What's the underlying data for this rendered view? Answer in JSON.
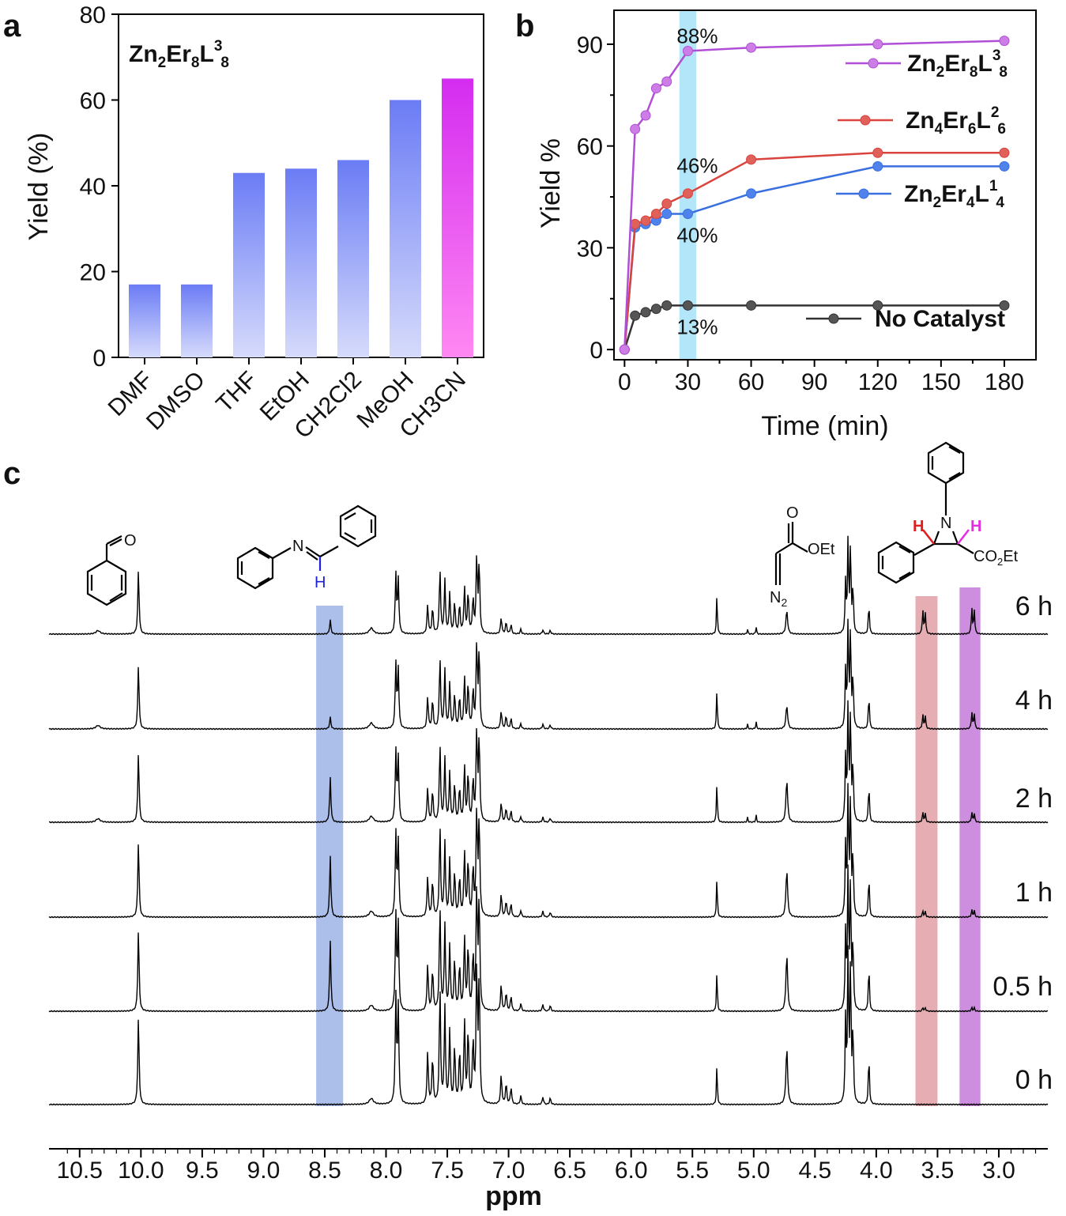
{
  "panel_labels": [
    "a",
    "b",
    "c"
  ],
  "chart_data": [
    {
      "panel": "a",
      "type": "bar",
      "title": "Zn2Er8L38",
      "title_parts": {
        "base": "Zn",
        "s1": "2",
        "b2": "Er",
        "s2": "8",
        "b3": "L",
        "sup": "3",
        "s3": "8"
      },
      "ylabel": "Yield (%)",
      "xlabel": "",
      "ylim": [
        0,
        80
      ],
      "yticks": [
        0,
        20,
        40,
        60,
        80
      ],
      "categories": [
        "DMF",
        "DMSO",
        "THF",
        "EtOH",
        "CH2Cl2",
        "MeOH",
        "CH3CN"
      ],
      "values": [
        17,
        17,
        43,
        44,
        46,
        60,
        65
      ],
      "colors": {
        "bar_top": "#6b7cf5",
        "bar_bottom": "#d6dbfb",
        "highlight_top": "#d42cf0",
        "highlight_bottom": "#ff88f2"
      }
    },
    {
      "panel": "b",
      "type": "line",
      "xlabel": "Time (min)",
      "ylabel": "Yield %",
      "xlim": [
        -5,
        195
      ],
      "ylim": [
        -3,
        100
      ],
      "xticks": [
        0,
        30,
        60,
        90,
        120,
        150,
        180
      ],
      "yticks": [
        0,
        30,
        60,
        90
      ],
      "highlight_x": [
        26,
        34
      ],
      "series": [
        {
          "name": "Zn2Er8L38",
          "parts": [
            "Zn",
            "2",
            "Er",
            "8",
            "L",
            "3",
            "8"
          ],
          "color": "#b04fd6",
          "fill": "#cc7ee6",
          "x": [
            0,
            5,
            10,
            15,
            20,
            30,
            60,
            120,
            180
          ],
          "y": [
            0,
            65,
            69,
            77,
            79,
            88,
            89,
            90,
            91
          ]
        },
        {
          "name": "Zn4Er6L26",
          "parts": [
            "Zn",
            "4",
            "Er",
            "6",
            "L",
            "2",
            "6"
          ],
          "color": "#d9443f",
          "fill": "#e0605a",
          "x": [
            0,
            5,
            10,
            15,
            20,
            30,
            60,
            120,
            180
          ],
          "y": [
            0,
            37,
            38,
            40,
            43,
            46,
            56,
            58,
            58
          ]
        },
        {
          "name": "Zn2Er4L14",
          "parts": [
            "Zn",
            "2",
            "Er",
            "4",
            "L",
            "1",
            "4"
          ],
          "color": "#3a6fe0",
          "fill": "#4f82ea",
          "x": [
            0,
            5,
            10,
            15,
            20,
            30,
            60,
            120,
            180
          ],
          "y": [
            0,
            36,
            37,
            38,
            40,
            40,
            46,
            54,
            54
          ]
        },
        {
          "name": "No Catalyst",
          "color": "#333333",
          "fill": "#555555",
          "x": [
            0,
            5,
            10,
            15,
            20,
            30,
            60,
            120,
            180
          ],
          "y": [
            0,
            10,
            11,
            12,
            13,
            13,
            13,
            13,
            13
          ]
        }
      ],
      "annotations": [
        {
          "text": "88%",
          "x": 30,
          "y": 88
        },
        {
          "text": "46%",
          "x": 30,
          "y": 46
        },
        {
          "text": "40%",
          "x": 30,
          "y": 40
        },
        {
          "text": "13%",
          "x": 30,
          "y": 13
        }
      ]
    },
    {
      "panel": "c",
      "type": "line",
      "xlabel": "ppm",
      "xlim": [
        10.75,
        2.6
      ],
      "xticks": [
        10.5,
        10.0,
        9.5,
        9.0,
        8.5,
        8.0,
        7.5,
        7.0,
        6.5,
        6.0,
        5.5,
        5.0,
        4.5,
        4.0,
        3.5,
        3.0
      ],
      "xtick_labels": [
        "10.5",
        "10.0",
        "9.5",
        "9.0",
        "8.5",
        "8.0",
        "7.5",
        "7.0",
        "6.5",
        "6.0",
        "5.5",
        "5.0",
        "4.5",
        "4.0",
        "3.5",
        "3.0"
      ],
      "highlight_bands": [
        {
          "from": 8.57,
          "to": 8.35,
          "color": "#9db3e6"
        },
        {
          "from": 3.68,
          "to": 3.5,
          "color": "#e2a0a6"
        },
        {
          "from": 3.32,
          "to": 3.15,
          "color": "#c67ad9"
        }
      ],
      "series": [
        {
          "name": "6 h",
          "aldehyde": 0.55,
          "imine": 0.12,
          "aromatic": 0.5,
          "diazo": 0.2,
          "ester": 0.8,
          "prod1": 0.2,
          "prod2": 0.22
        },
        {
          "name": "4 h",
          "aldehyde": 0.55,
          "imine": 0.1,
          "aromatic": 0.55,
          "diazo": 0.2,
          "ester": 0.9,
          "prod1": 0.12,
          "prod2": 0.14
        },
        {
          "name": "2 h",
          "aldehyde": 0.6,
          "imine": 0.38,
          "aromatic": 0.6,
          "diazo": 0.36,
          "ester": 1.0,
          "prod1": 0.08,
          "prod2": 0.08
        },
        {
          "name": "1 h",
          "aldehyde": 0.65,
          "imine": 0.52,
          "aromatic": 0.7,
          "diazo": 0.4,
          "ester": 1.1,
          "prod1": 0.05,
          "prod2": 0.06
        },
        {
          "name": "0.5 h",
          "aldehyde": 0.7,
          "imine": 0.6,
          "aromatic": 0.8,
          "diazo": 0.48,
          "ester": 1.2,
          "prod1": 0.03,
          "prod2": 0.03
        },
        {
          "name": "0 h",
          "aldehyde": 0.75,
          "imine": 0.0,
          "aromatic": 0.9,
          "diazo": 0.48,
          "ester": 1.3,
          "prod1": 0.0,
          "prod2": 0.0
        }
      ]
    }
  ],
  "structures": {
    "aldehyde_atom": "O",
    "imine_atom": "N",
    "imine_h": "H",
    "diazo_o": "O",
    "diazo_ester": "OEt",
    "diazo_n": "N",
    "diazo_n_sub": "2",
    "aziridine_n": "N",
    "aziridine_h1": "H",
    "aziridine_h2": "H",
    "aziridine_ester": "CO",
    "aziridine_ester_sub": "2",
    "aziridine_ester_tail": "Et"
  }
}
